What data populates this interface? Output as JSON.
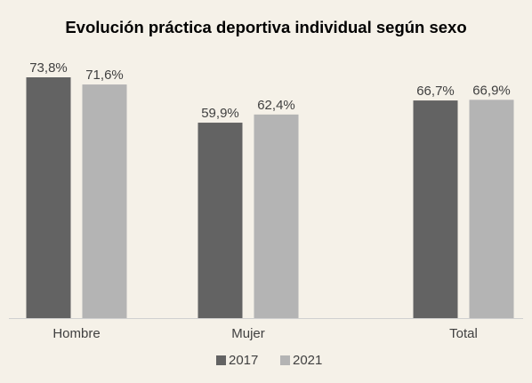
{
  "chart_data": {
    "type": "bar",
    "title": "Evolución práctica deportiva individual según sexo",
    "categories": [
      "Hombre",
      "Mujer",
      "Total"
    ],
    "series": [
      {
        "name": "2017",
        "values": [
          73.8,
          59.9,
          66.7
        ],
        "labels": [
          "73,8%",
          "59,9%",
          "66,7%"
        ],
        "color": "#636363"
      },
      {
        "name": "2021",
        "values": [
          71.6,
          62.4,
          66.9
        ],
        "labels": [
          "71,6%",
          "62,4%",
          "66,9%"
        ],
        "color": "#b4b4b4"
      }
    ],
    "ylim": [
      0,
      73.8
    ],
    "grid": false,
    "legend_position": "bottom",
    "background_color": "#f5f1e8",
    "axis_line_color": "#d0d0d0"
  }
}
